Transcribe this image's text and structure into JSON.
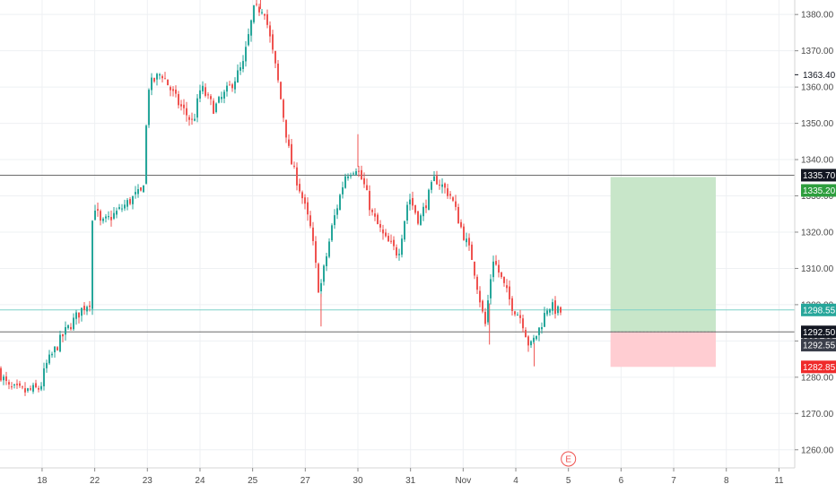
{
  "chart_data": {
    "type": "candlestick",
    "instrument_note": "",
    "colors": {
      "up": "#26a69a",
      "down": "#ef5350",
      "grid": "#eef0f3",
      "axis_text": "#4a4a4a",
      "hline": "#6b6b6b",
      "last_price_line": "#7fd1c8",
      "target_zone": "#c8e6c9",
      "stop_zone": "#ffcdd2"
    },
    "ylim": [
      1255,
      1384
    ],
    "y_ticks": [
      1260,
      1270,
      1280,
      1290,
      1300,
      1310,
      1320,
      1330,
      1340,
      1350,
      1360,
      1370,
      1380
    ],
    "y_tick_labels": [
      "1260.00",
      "1270.00",
      "1280.00",
      "1290.00",
      "1300.00",
      "1310.00",
      "1320.00",
      "1330.00",
      "1340.00",
      "1350.00",
      "1360.00",
      "1370.00",
      "1380.00"
    ],
    "x_range": [
      -0.8,
      14.3
    ],
    "x_ticks": [
      {
        "x": 0,
        "label": "18"
      },
      {
        "x": 1,
        "label": "22"
      },
      {
        "x": 2,
        "label": "23"
      },
      {
        "x": 3,
        "label": "24"
      },
      {
        "x": 4,
        "label": "25"
      },
      {
        "x": 5,
        "label": "27"
      },
      {
        "x": 6,
        "label": "30"
      },
      {
        "x": 7,
        "label": "31"
      },
      {
        "x": 8,
        "label": "Nov"
      },
      {
        "x": 9,
        "label": "4"
      },
      {
        "x": 10,
        "label": "5"
      },
      {
        "x": 11,
        "label": "6"
      },
      {
        "x": 12,
        "label": "7"
      },
      {
        "x": 13,
        "label": "8"
      },
      {
        "x": 14,
        "label": "11"
      }
    ],
    "path_points": [
      [
        -0.8,
        1282
      ],
      [
        -0.6,
        1277
      ],
      [
        -0.3,
        1276
      ],
      [
        0.0,
        1277
      ],
      [
        0.1,
        1283
      ],
      [
        0.45,
        1292
      ],
      [
        0.8,
        1299
      ],
      [
        0.95,
        1301
      ],
      [
        1.0,
        1329
      ],
      [
        1.15,
        1322
      ],
      [
        1.5,
        1326
      ],
      [
        1.8,
        1330
      ],
      [
        1.95,
        1331
      ],
      [
        2.05,
        1360
      ],
      [
        2.3,
        1364
      ],
      [
        2.6,
        1356
      ],
      [
        2.9,
        1350
      ],
      [
        3.05,
        1360
      ],
      [
        3.3,
        1354
      ],
      [
        3.6,
        1360
      ],
      [
        3.85,
        1366
      ],
      [
        4.05,
        1381
      ],
      [
        4.25,
        1382
      ],
      [
        4.5,
        1363
      ],
      [
        4.75,
        1340
      ],
      [
        4.95,
        1331
      ],
      [
        5.15,
        1320
      ],
      [
        5.3,
        1303
      ],
      [
        5.55,
        1322
      ],
      [
        5.8,
        1336
      ],
      [
        6.0,
        1338
      ],
      [
        6.15,
        1333
      ],
      [
        6.3,
        1325
      ],
      [
        6.55,
        1318
      ],
      [
        6.8,
        1314
      ],
      [
        7.0,
        1330
      ],
      [
        7.2,
        1323
      ],
      [
        7.5,
        1335
      ],
      [
        7.8,
        1330
      ],
      [
        8.0,
        1321
      ],
      [
        8.2,
        1313
      ],
      [
        8.45,
        1294
      ],
      [
        8.6,
        1313
      ],
      [
        8.95,
        1300
      ],
      [
        9.15,
        1296
      ],
      [
        9.3,
        1288
      ],
      [
        9.5,
        1294
      ],
      [
        9.65,
        1300
      ],
      [
        9.85,
        1298
      ]
    ],
    "dip_wicks": [
      [
        5.3,
        1294
      ],
      [
        8.5,
        1289
      ],
      [
        9.35,
        1283
      ]
    ],
    "spike_wicks": [
      [
        6.0,
        1347
      ],
      [
        4.15,
        1384
      ]
    ],
    "last_price": 1298.55,
    "horizontal_lines": [
      1335.7,
      1292.5
    ],
    "position": {
      "x_start": 10.8,
      "x_end": 12.8,
      "entry": 1292.5,
      "target": 1335.2,
      "stop": 1282.85
    },
    "price_badges": [
      {
        "value": 1363.4,
        "label": "1363.40",
        "style": "tick"
      },
      {
        "value": 1335.7,
        "label": "1335.70",
        "style": "dark"
      },
      {
        "value": 1335.2,
        "label": "1335.20",
        "style": "green",
        "offset": 15
      },
      {
        "value": 1298.55,
        "label": "1298.55",
        "style": "teal"
      },
      {
        "value": 1292.5,
        "label": "1292.50",
        "style": "dark"
      },
      {
        "value": 1292.55,
        "label": "1292.55",
        "style": "darkgray",
        "offset": 15
      },
      {
        "value": 1282.85,
        "label": "1282.85",
        "style": "red"
      }
    ],
    "events": [
      {
        "x": 10.0,
        "label": "E"
      }
    ]
  }
}
